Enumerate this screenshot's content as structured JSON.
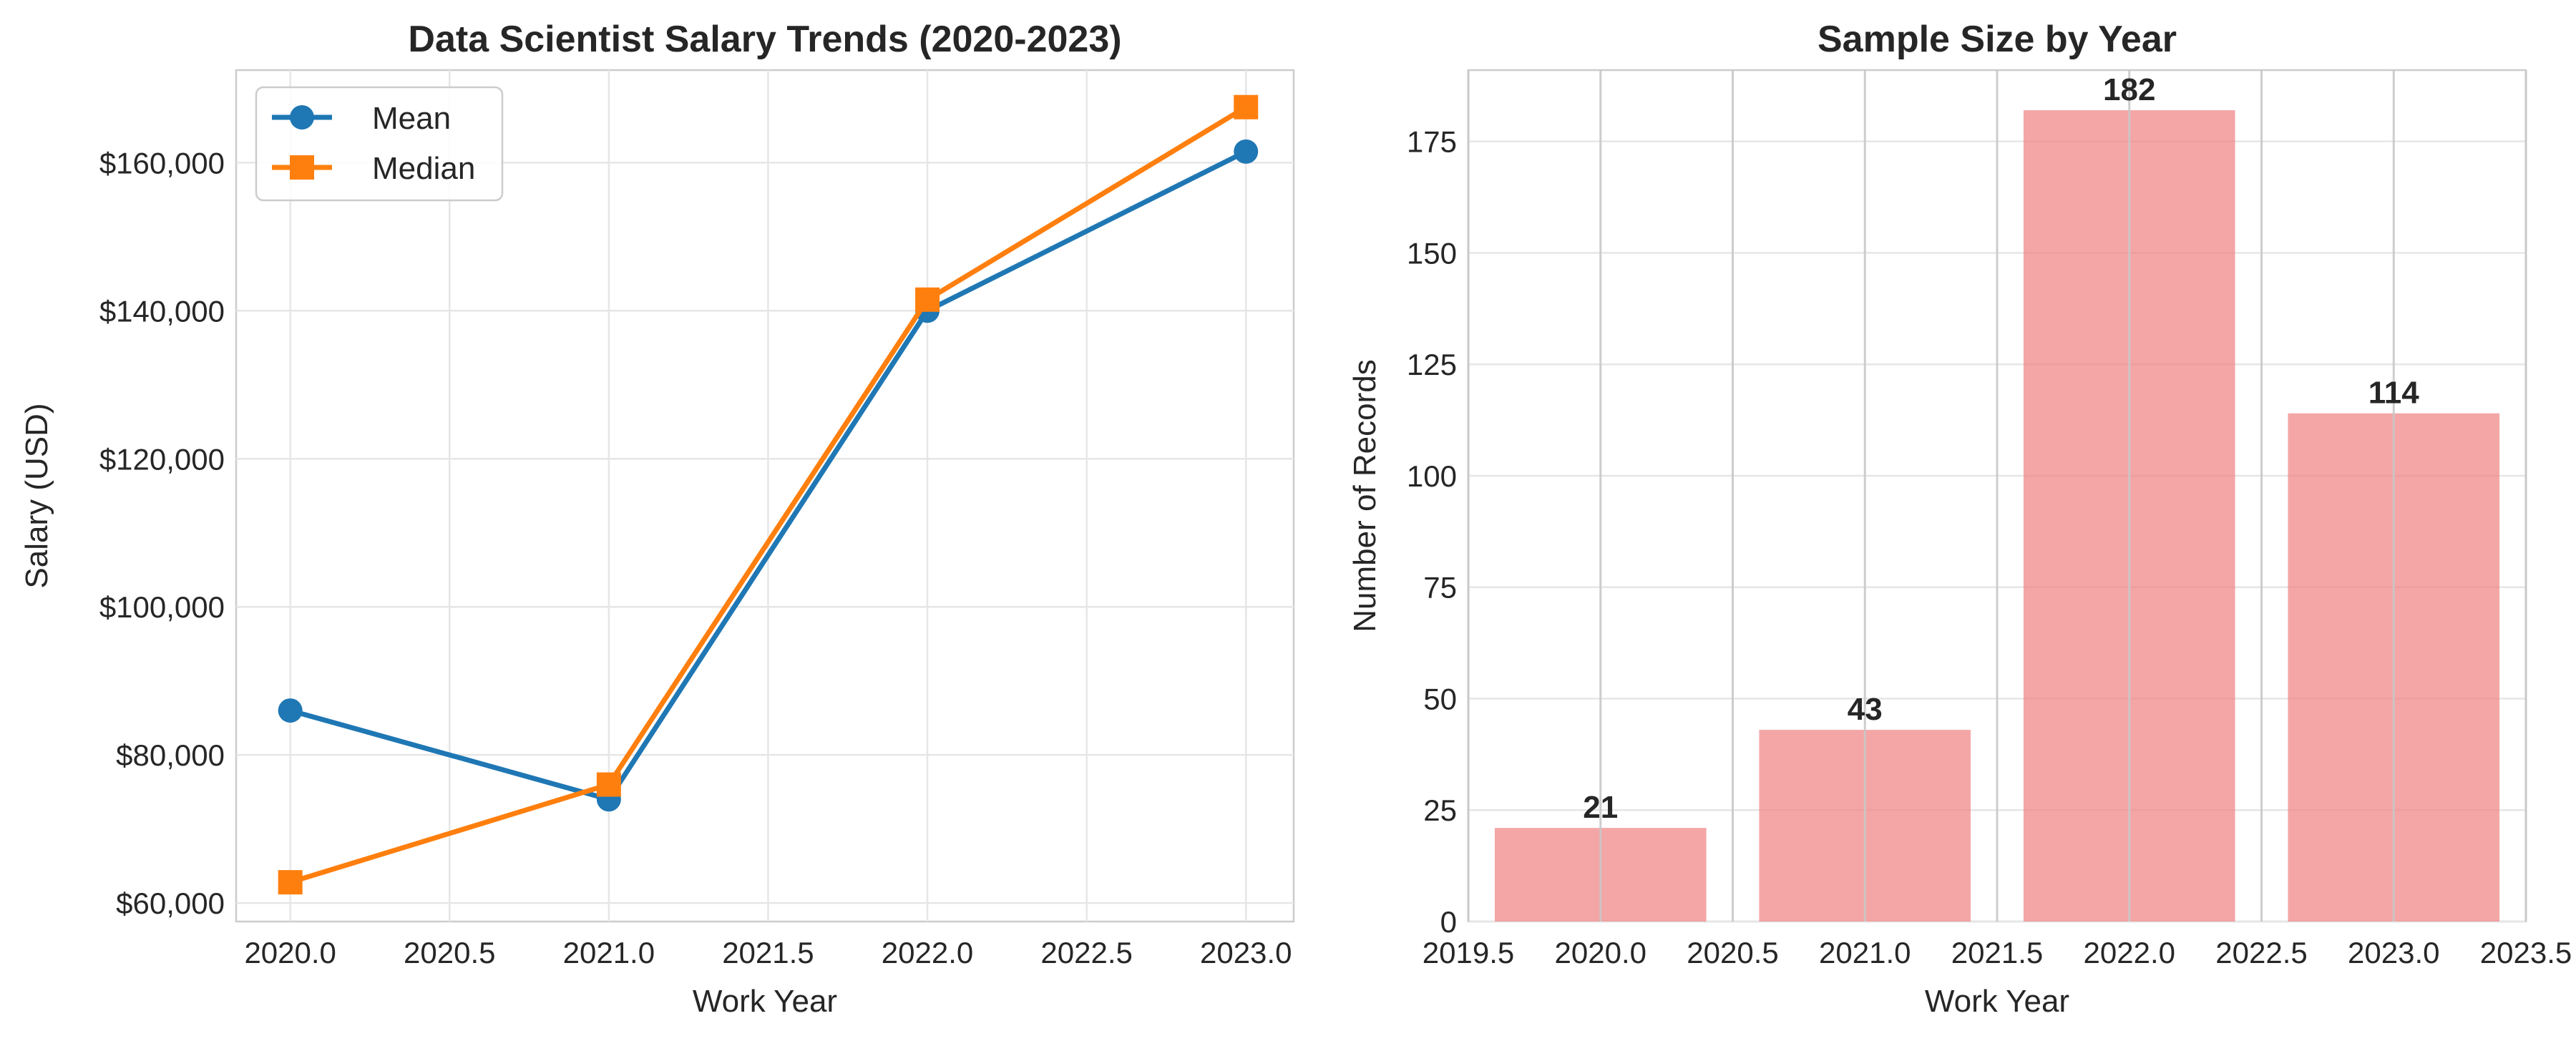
{
  "chart_data": [
    {
      "type": "line",
      "title": "Data Scientist Salary Trends (2020-2023)",
      "xlabel": "Work Year",
      "ylabel": "Salary (USD)",
      "x": [
        2020,
        2021,
        2022,
        2023
      ],
      "xlim": [
        2019.83,
        2023.15
      ],
      "ylim": [
        57500,
        172500
      ],
      "xticks": [
        2020,
        2020.5,
        2021,
        2021.5,
        2022,
        2022.5,
        2023
      ],
      "xtick_labels": [
        "2020.0",
        "2020.5",
        "2021.0",
        "2021.5",
        "2022.0",
        "2022.5",
        "2023.0"
      ],
      "yticks": [
        60000,
        80000,
        100000,
        120000,
        140000,
        160000
      ],
      "ytick_labels": [
        "$60,000",
        "$80,000",
        "$100,000",
        "$120,000",
        "$140,000",
        "$160,000"
      ],
      "legend_position": "top-left",
      "series": [
        {
          "name": "Mean",
          "values": [
            86000,
            74000,
            140000,
            161500
          ],
          "color": "#1f77b4",
          "marker": "circle"
        },
        {
          "name": "Median",
          "values": [
            62800,
            76000,
            141500,
            167500
          ],
          "color": "#ff7f0e",
          "marker": "square"
        }
      ]
    },
    {
      "type": "bar",
      "title": "Sample Size by Year",
      "xlabel": "Work Year",
      "ylabel": "Number of Records",
      "x": [
        2020,
        2021,
        2022,
        2023
      ],
      "values": [
        21,
        43,
        182,
        114
      ],
      "data_labels": [
        "21",
        "43",
        "182",
        "114"
      ],
      "bar_width": 0.8,
      "color": "#f08080",
      "xlim": [
        2019.5,
        2023.5
      ],
      "ylim": [
        0,
        191
      ],
      "xticks": [
        2019.5,
        2020,
        2020.5,
        2021,
        2021.5,
        2022,
        2022.5,
        2023,
        2023.5
      ],
      "xtick_labels": [
        "2019.5",
        "2020.0",
        "2020.5",
        "2021.0",
        "2021.5",
        "2022.0",
        "2022.5",
        "2023.0",
        "2023.5"
      ],
      "yticks": [
        0,
        25,
        50,
        75,
        100,
        125,
        150,
        175
      ],
      "ytick_labels": [
        "0",
        "25",
        "50",
        "75",
        "100",
        "125",
        "150",
        "175"
      ]
    }
  ]
}
